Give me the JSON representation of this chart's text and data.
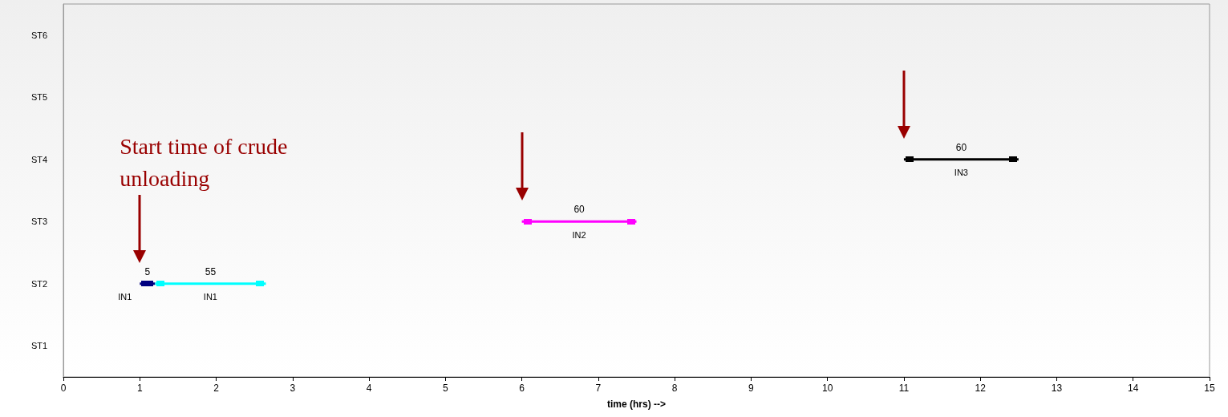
{
  "chart_data": {
    "type": "bar",
    "orientation": "horizontal",
    "xlabel": "time (hrs) -->",
    "categories": [
      "ST6",
      "ST5",
      "ST4",
      "ST3",
      "ST2",
      "ST1"
    ],
    "series": [
      {
        "name": "IN1",
        "color": "#000080",
        "values": [
          null,
          null,
          null,
          null,
          0.2,
          null
        ],
        "base": [
          null,
          null,
          null,
          null,
          1.0,
          null
        ]
      },
      {
        "name": "IN1",
        "color": "#00ffff",
        "values": [
          null,
          null,
          null,
          null,
          1.45,
          null
        ],
        "base": [
          null,
          null,
          null,
          null,
          1.2,
          null
        ]
      },
      {
        "name": "IN2",
        "color": "#ff00ff",
        "values": [
          null,
          null,
          null,
          1.5,
          null,
          null
        ],
        "base": [
          null,
          null,
          null,
          6.0,
          null,
          null
        ]
      },
      {
        "name": "IN3",
        "color": "#000000",
        "values": [
          null,
          null,
          1.5,
          null,
          null,
          null
        ],
        "base": [
          null,
          null,
          11.0,
          null,
          null,
          null
        ]
      }
    ],
    "xlim": [
      0,
      15
    ],
    "xticks": [
      0,
      1,
      2,
      3,
      4,
      5,
      6,
      7,
      8,
      9,
      10,
      11,
      12,
      13,
      14,
      15
    ],
    "annotations": [
      "Start time of crude unloading",
      "5",
      "55",
      "60",
      "60"
    ],
    "grid": false,
    "legend": false
  }
}
